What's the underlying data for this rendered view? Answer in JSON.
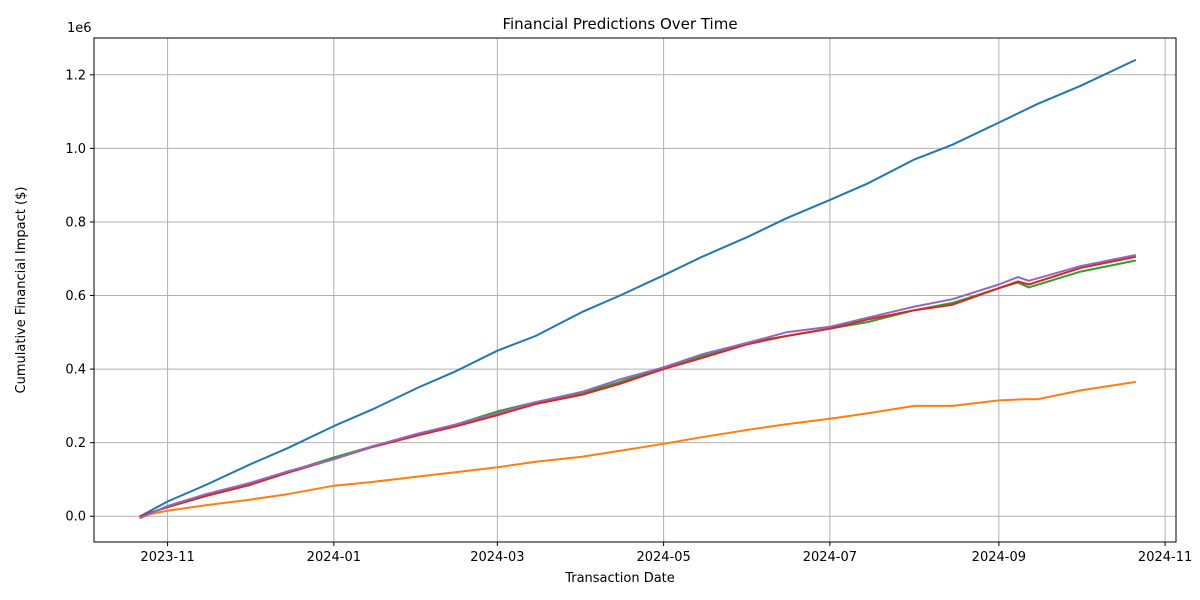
{
  "chart_data": {
    "type": "line",
    "title": "Financial Predictions Over Time",
    "xlabel": "Transaction Date",
    "ylabel": "Cumulative Financial Impact ($)",
    "y_offset_label": "1e6",
    "x_range": [
      "2023-10-05",
      "2024-11-05"
    ],
    "ylim": [
      -0.07,
      1.3
    ],
    "grid": true,
    "x_ticks": [
      {
        "date": "2023-11-01",
        "label": "2023-11"
      },
      {
        "date": "2024-01-01",
        "label": "2024-01"
      },
      {
        "date": "2024-03-01",
        "label": "2024-03"
      },
      {
        "date": "2024-05-01",
        "label": "2024-05"
      },
      {
        "date": "2024-07-01",
        "label": "2024-07"
      },
      {
        "date": "2024-09-01",
        "label": "2024-09"
      },
      {
        "date": "2024-11-01",
        "label": "2024-11"
      }
    ],
    "y_ticks": [
      {
        "value": 0.0,
        "label": "0.0"
      },
      {
        "value": 0.2,
        "label": "0.2"
      },
      {
        "value": 0.4,
        "label": "0.4"
      },
      {
        "value": 0.6,
        "label": "0.6"
      },
      {
        "value": 0.8,
        "label": "0.8"
      },
      {
        "value": 1.0,
        "label": "1.0"
      },
      {
        "value": 1.2,
        "label": "1.2"
      }
    ],
    "series": [
      {
        "color": "#1f77b4",
        "x": [
          "2023-10-22",
          "2023-11-01",
          "2023-11-15",
          "2023-12-01",
          "2023-12-15",
          "2024-01-01",
          "2024-01-15",
          "2024-02-01",
          "2024-02-15",
          "2024-03-01",
          "2024-03-15",
          "2024-04-01",
          "2024-04-15",
          "2024-05-01",
          "2024-05-15",
          "2024-06-01",
          "2024-06-15",
          "2024-07-01",
          "2024-07-15",
          "2024-08-01",
          "2024-08-15",
          "2024-09-01",
          "2024-09-15",
          "2024-10-01",
          "2024-10-21"
        ],
        "y": [
          0.0,
          0.04,
          0.085,
          0.14,
          0.185,
          0.245,
          0.29,
          0.35,
          0.395,
          0.45,
          0.49,
          0.555,
          0.6,
          0.655,
          0.705,
          0.76,
          0.81,
          0.86,
          0.905,
          0.97,
          1.01,
          1.07,
          1.12,
          1.17,
          1.24
        ]
      },
      {
        "color": "#ff7f0e",
        "x": [
          "2023-10-22",
          "2023-11-01",
          "2023-11-15",
          "2023-12-01",
          "2023-12-15",
          "2024-01-01",
          "2024-01-15",
          "2024-02-01",
          "2024-02-15",
          "2024-03-01",
          "2024-03-15",
          "2024-04-01",
          "2024-04-15",
          "2024-05-01",
          "2024-05-15",
          "2024-06-01",
          "2024-06-15",
          "2024-07-01",
          "2024-07-15",
          "2024-08-01",
          "2024-08-15",
          "2024-09-01",
          "2024-09-10",
          "2024-09-15",
          "2024-10-01",
          "2024-10-21"
        ],
        "y": [
          0.0,
          0.015,
          0.03,
          0.045,
          0.06,
          0.083,
          0.093,
          0.108,
          0.12,
          0.133,
          0.148,
          0.162,
          0.178,
          0.197,
          0.215,
          0.235,
          0.25,
          0.265,
          0.28,
          0.3,
          0.3,
          0.315,
          0.318,
          0.318,
          0.342,
          0.365
        ]
      },
      {
        "color": "#2ca02c",
        "x": [
          "2023-10-22",
          "2023-11-01",
          "2023-11-15",
          "2023-12-01",
          "2023-12-15",
          "2024-01-01",
          "2024-01-15",
          "2024-02-01",
          "2024-02-15",
          "2024-03-01",
          "2024-03-15",
          "2024-04-01",
          "2024-04-15",
          "2024-05-01",
          "2024-05-15",
          "2024-06-01",
          "2024-06-15",
          "2024-07-01",
          "2024-07-15",
          "2024-08-01",
          "2024-08-15",
          "2024-09-01",
          "2024-09-08",
          "2024-09-12",
          "2024-10-01",
          "2024-10-21"
        ],
        "y": [
          0.0,
          0.025,
          0.055,
          0.085,
          0.12,
          0.16,
          0.19,
          0.222,
          0.25,
          0.285,
          0.31,
          0.335,
          0.365,
          0.405,
          0.435,
          0.472,
          0.49,
          0.51,
          0.528,
          0.56,
          0.58,
          0.62,
          0.635,
          0.622,
          0.665,
          0.695
        ]
      },
      {
        "color": "#d62728",
        "x": [
          "2023-10-22",
          "2023-11-01",
          "2023-11-15",
          "2023-12-01",
          "2023-12-15",
          "2024-01-01",
          "2024-01-15",
          "2024-02-01",
          "2024-02-15",
          "2024-03-01",
          "2024-03-15",
          "2024-04-01",
          "2024-04-15",
          "2024-05-01",
          "2024-05-15",
          "2024-06-01",
          "2024-06-15",
          "2024-07-01",
          "2024-07-15",
          "2024-08-01",
          "2024-08-15",
          "2024-09-01",
          "2024-09-08",
          "2024-09-12",
          "2024-10-01",
          "2024-10-21"
        ],
        "y": [
          0.0,
          0.025,
          0.055,
          0.085,
          0.118,
          0.155,
          0.188,
          0.22,
          0.245,
          0.275,
          0.305,
          0.33,
          0.36,
          0.4,
          0.43,
          0.468,
          0.49,
          0.51,
          0.535,
          0.56,
          0.575,
          0.62,
          0.638,
          0.63,
          0.675,
          0.705
        ]
      },
      {
        "color": "#9467bd",
        "x": [
          "2023-10-22",
          "2023-11-01",
          "2023-11-15",
          "2023-12-01",
          "2023-12-15",
          "2024-01-01",
          "2024-01-15",
          "2024-02-01",
          "2024-02-15",
          "2024-03-01",
          "2024-03-15",
          "2024-04-01",
          "2024-04-15",
          "2024-05-01",
          "2024-05-15",
          "2024-06-01",
          "2024-06-15",
          "2024-07-01",
          "2024-07-15",
          "2024-08-01",
          "2024-08-15",
          "2024-09-01",
          "2024-09-08",
          "2024-09-12",
          "2024-10-01",
          "2024-10-21"
        ],
        "y": [
          -0.005,
          0.028,
          0.06,
          0.09,
          0.122,
          0.155,
          0.19,
          0.225,
          0.25,
          0.28,
          0.31,
          0.338,
          0.372,
          0.405,
          0.44,
          0.472,
          0.5,
          0.515,
          0.54,
          0.57,
          0.59,
          0.63,
          0.65,
          0.64,
          0.68,
          0.71
        ]
      }
    ]
  }
}
